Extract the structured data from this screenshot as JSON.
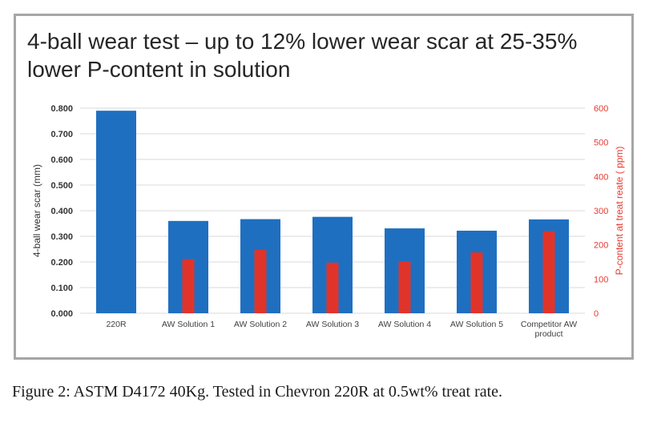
{
  "figure": {
    "caption": "Figure 2: ASTM D4172 40Kg. Tested in Chevron 220R at 0.5wt% treat rate."
  },
  "chart_data": {
    "type": "bar",
    "title": "4-ball wear test – up to 12% lower wear scar at 25-35% lower P-content in solution",
    "categories": [
      [
        "220R"
      ],
      [
        "AW Solution 1"
      ],
      [
        "AW Solution 2"
      ],
      [
        "AW Solution 3"
      ],
      [
        "AW Solution 4"
      ],
      [
        "AW Solution 5"
      ],
      [
        "Competitor AW",
        "product"
      ]
    ],
    "ylabel": "4-ball wear scar (mm)",
    "y2label": "P-content at treat reate ( ppm)",
    "ylim": [
      0,
      0.8
    ],
    "y2lim": [
      0,
      600
    ],
    "yticks": [
      "0.000",
      "0.100",
      "0.200",
      "0.300",
      "0.400",
      "0.500",
      "0.600",
      "0.700",
      "0.800"
    ],
    "y2ticks": [
      "0",
      "100",
      "200",
      "300",
      "400",
      "500",
      "600"
    ],
    "grid": true,
    "series": [
      {
        "axis": "left",
        "color": "#1f6fc0",
        "values": [
          0.79,
          0.36,
          0.367,
          0.376,
          0.331,
          0.322,
          0.366
        ]
      },
      {
        "axis": "right",
        "color": "#e0342b",
        "values": [
          null,
          158,
          185,
          148,
          152,
          178,
          240
        ]
      }
    ]
  }
}
